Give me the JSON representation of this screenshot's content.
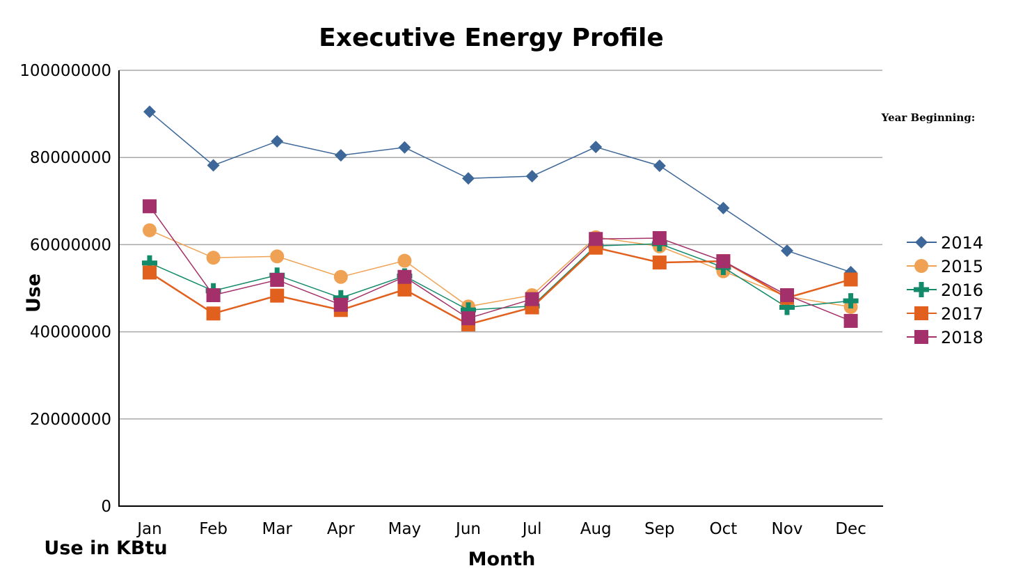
{
  "chart_data": {
    "type": "line",
    "title": "Executive Energy Profile",
    "xlabel": "Month",
    "ylabel": "Use",
    "unit_note": "Use in KBtu",
    "legend_title": "Year Beginning:",
    "legend_position": "right",
    "grid": true,
    "ylim": [
      0,
      100000000
    ],
    "y_ticks": [
      "0",
      "20000000",
      "40000000",
      "60000000",
      "80000000",
      "100000000"
    ],
    "y_tick_values": [
      0,
      20000000,
      40000000,
      60000000,
      80000000,
      100000000
    ],
    "categories": [
      "Jan",
      "Feb",
      "Mar",
      "Apr",
      "May",
      "Jun",
      "Jul",
      "Aug",
      "Sep",
      "Oct",
      "Nov",
      "Dec"
    ],
    "series": [
      {
        "name": "2014",
        "color": "#3d6798",
        "marker": "diamond",
        "values": [
          90500000,
          78200000,
          83700000,
          80500000,
          82300000,
          75200000,
          75700000,
          82400000,
          78100000,
          68400000,
          58600000,
          53700000
        ]
      },
      {
        "name": "2015",
        "color": "#f0a254",
        "marker": "circle",
        "values": [
          63300000,
          57000000,
          57300000,
          52600000,
          56300000,
          45800000,
          48400000,
          61700000,
          59600000,
          53900000,
          48100000,
          45700000
        ]
      },
      {
        "name": "2016",
        "color": "#138a6a",
        "marker": "plus",
        "values": [
          55800000,
          49400000,
          53000000,
          47800000,
          52800000,
          45000000,
          45900000,
          59700000,
          60200000,
          54800000,
          45600000,
          47100000
        ]
      },
      {
        "name": "2017",
        "color": "#e2601e",
        "marker": "square",
        "values": [
          53600000,
          44200000,
          48300000,
          45000000,
          49700000,
          41700000,
          45600000,
          59300000,
          55900000,
          56200000,
          47800000,
          52000000
        ]
      },
      {
        "name": "2018",
        "color": "#a3306a",
        "marker": "square",
        "values": [
          68800000,
          48400000,
          51900000,
          46200000,
          52600000,
          43100000,
          47500000,
          61300000,
          61500000,
          56200000,
          48400000,
          42500000
        ]
      }
    ]
  }
}
